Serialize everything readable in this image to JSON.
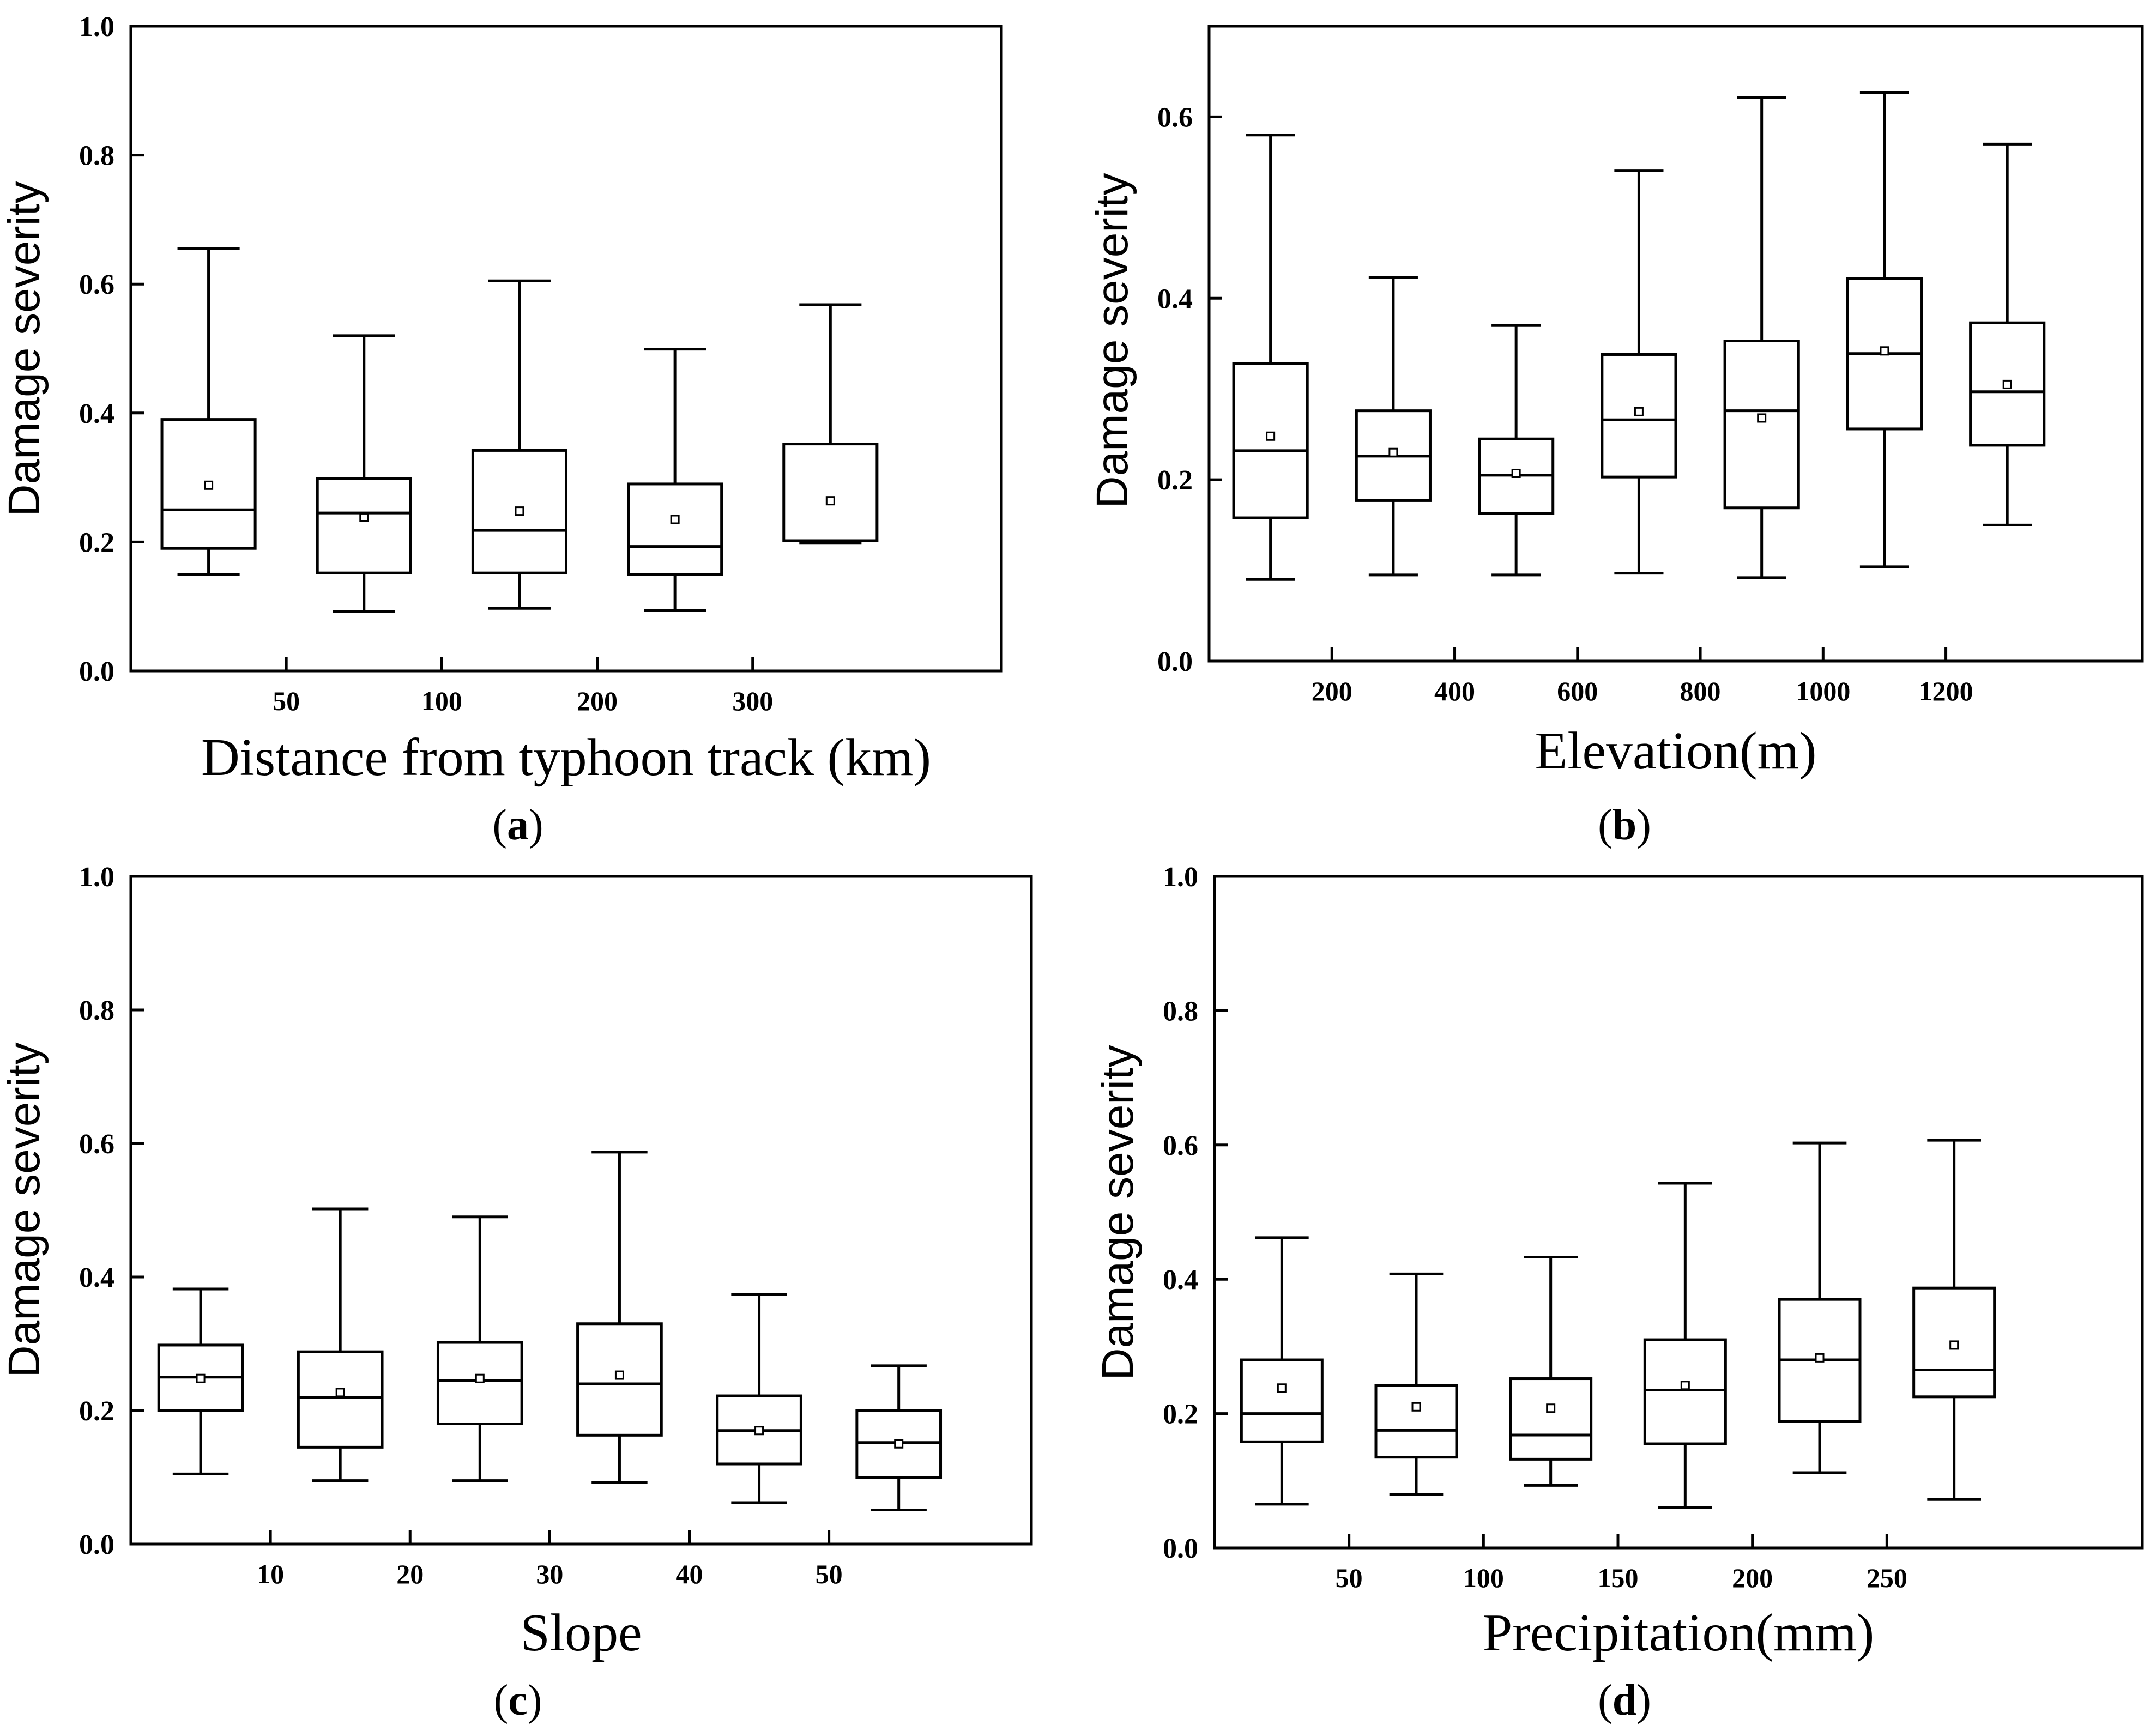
{
  "figure": {
    "ylabel": "Damage severity"
  },
  "chart_data": [
    {
      "type": "box",
      "panel": "(a)",
      "panel_letter": "a",
      "title": "",
      "xlabel": "Distance from typhoon track (km)",
      "ylabel": "Damage severity",
      "ylim": [
        0.0,
        1.0
      ],
      "yticks": [
        "0.0",
        "0.2",
        "0.4",
        "0.6",
        "0.8",
        "1.0"
      ],
      "ytick_values": [
        0.0,
        0.2,
        0.4,
        0.6,
        0.8,
        1.0
      ],
      "xlim": [
        0,
        5.6
      ],
      "xticks": [
        "50",
        "100",
        "200",
        "300"
      ],
      "xtick_positions": [
        1,
        2,
        3,
        4
      ],
      "boxes": [
        {
          "min": 0.15,
          "q1": 0.19,
          "median": 0.25,
          "q3": 0.39,
          "max": 0.655,
          "mean": 0.288
        },
        {
          "min": 0.092,
          "q1": 0.152,
          "median": 0.245,
          "q3": 0.298,
          "max": 0.52,
          "mean": 0.238
        },
        {
          "min": 0.097,
          "q1": 0.152,
          "median": 0.218,
          "q3": 0.342,
          "max": 0.605,
          "mean": 0.248
        },
        {
          "min": 0.094,
          "q1": 0.15,
          "median": 0.193,
          "q3": 0.29,
          "max": 0.499,
          "mean": 0.235
        },
        {
          "min": 0.198,
          "q1": 0.202,
          "median": 0.202,
          "q3": 0.352,
          "max": 0.568,
          "mean": 0.264
        }
      ]
    },
    {
      "type": "box",
      "panel": "(b)",
      "panel_letter": "b",
      "title": "",
      "xlabel": "Elevation(m)",
      "ylabel": "Damage severity",
      "ylim": [
        0.0,
        0.7
      ],
      "yticks": [
        "0.0",
        "0.2",
        "0.4",
        "0.6"
      ],
      "ytick_values": [
        0.0,
        0.2,
        0.4,
        0.6
      ],
      "xlim": [
        0,
        7.6
      ],
      "xticks": [
        "200",
        "400",
        "600",
        "800",
        "1000",
        "1200"
      ],
      "xtick_positions": [
        1,
        2,
        3,
        4,
        5,
        6
      ],
      "boxes": [
        {
          "min": 0.09,
          "q1": 0.158,
          "median": 0.232,
          "q3": 0.328,
          "max": 0.58,
          "mean": 0.248
        },
        {
          "min": 0.095,
          "q1": 0.177,
          "median": 0.226,
          "q3": 0.276,
          "max": 0.423,
          "mean": 0.23
        },
        {
          "min": 0.095,
          "q1": 0.163,
          "median": 0.205,
          "q3": 0.245,
          "max": 0.37,
          "mean": 0.207
        },
        {
          "min": 0.097,
          "q1": 0.203,
          "median": 0.266,
          "q3": 0.338,
          "max": 0.541,
          "mean": 0.275
        },
        {
          "min": 0.092,
          "q1": 0.169,
          "median": 0.276,
          "q3": 0.353,
          "max": 0.621,
          "mean": 0.268
        },
        {
          "min": 0.104,
          "q1": 0.256,
          "median": 0.339,
          "q3": 0.422,
          "max": 0.627,
          "mean": 0.342
        },
        {
          "min": 0.15,
          "q1": 0.238,
          "median": 0.297,
          "q3": 0.373,
          "max": 0.57,
          "mean": 0.305
        }
      ]
    },
    {
      "type": "box",
      "panel": "(c)",
      "panel_letter": "c",
      "title": "",
      "xlabel": "Slope",
      "ylabel": "Damage severity",
      "ylim": [
        0.0,
        1.0
      ],
      "yticks": [
        "0.0",
        "0.2",
        "0.4",
        "0.6",
        "0.8",
        "1.0"
      ],
      "ytick_values": [
        0.0,
        0.2,
        0.4,
        0.6,
        0.8,
        1.0
      ],
      "xlim": [
        0,
        6.45
      ],
      "xticks": [
        "10",
        "20",
        "30",
        "40",
        "50"
      ],
      "xtick_positions": [
        1,
        2,
        3,
        4,
        5
      ],
      "boxes": [
        {
          "min": 0.105,
          "q1": 0.2,
          "median": 0.25,
          "q3": 0.298,
          "max": 0.382,
          "mean": 0.248
        },
        {
          "min": 0.095,
          "q1": 0.145,
          "median": 0.22,
          "q3": 0.288,
          "max": 0.502,
          "mean": 0.227
        },
        {
          "min": 0.095,
          "q1": 0.18,
          "median": 0.245,
          "q3": 0.302,
          "max": 0.49,
          "mean": 0.248
        },
        {
          "min": 0.092,
          "q1": 0.163,
          "median": 0.24,
          "q3": 0.33,
          "max": 0.587,
          "mean": 0.253
        },
        {
          "min": 0.062,
          "q1": 0.12,
          "median": 0.17,
          "q3": 0.222,
          "max": 0.374,
          "mean": 0.17
        },
        {
          "min": 0.051,
          "q1": 0.1,
          "median": 0.152,
          "q3": 0.2,
          "max": 0.267,
          "mean": 0.15
        }
      ]
    },
    {
      "type": "box",
      "panel": "(d)",
      "panel_letter": "d",
      "title": "",
      "xlabel": "Precipitation(mm)",
      "ylabel": "Damage severity",
      "ylim": [
        0.0,
        1.0
      ],
      "yticks": [
        "0.0",
        "0.2",
        "0.4",
        "0.6",
        "0.8",
        "1.0"
      ],
      "ytick_values": [
        0.0,
        0.2,
        0.4,
        0.6,
        0.8,
        1.0
      ],
      "xlim": [
        0,
        6.9
      ],
      "xticks": [
        "50",
        "100",
        "150",
        "200",
        "250"
      ],
      "xtick_positions": [
        1,
        2,
        3,
        4,
        5
      ],
      "boxes": [
        {
          "min": 0.065,
          "q1": 0.158,
          "median": 0.2,
          "q3": 0.28,
          "max": 0.462,
          "mean": 0.238
        },
        {
          "min": 0.08,
          "q1": 0.135,
          "median": 0.175,
          "q3": 0.242,
          "max": 0.408,
          "mean": 0.21
        },
        {
          "min": 0.093,
          "q1": 0.132,
          "median": 0.168,
          "q3": 0.252,
          "max": 0.433,
          "mean": 0.208
        },
        {
          "min": 0.06,
          "q1": 0.155,
          "median": 0.235,
          "q3": 0.31,
          "max": 0.543,
          "mean": 0.242
        },
        {
          "min": 0.112,
          "q1": 0.188,
          "median": 0.28,
          "q3": 0.37,
          "max": 0.603,
          "mean": 0.283
        },
        {
          "min": 0.072,
          "q1": 0.225,
          "median": 0.265,
          "q3": 0.387,
          "max": 0.607,
          "mean": 0.302
        }
      ]
    }
  ]
}
